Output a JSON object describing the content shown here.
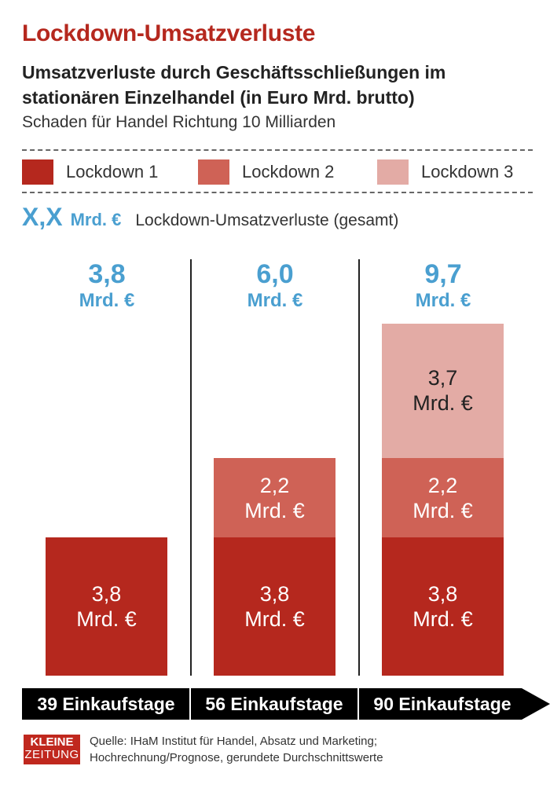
{
  "header": {
    "title": "Lockdown-Umsatzverluste",
    "subtitle": "Umsatzverluste durch Geschäftsschließungen im stationären Einzelhandel (in Euro Mrd. brutto)",
    "note": "Schaden für Handel Richtung 10 Milliarden"
  },
  "legend": {
    "items": [
      {
        "label": "Lockdown 1",
        "color": "#b5281e"
      },
      {
        "label": "Lockdown 2",
        "color": "#cf6256"
      },
      {
        "label": "Lockdown 3",
        "color": "#e3aba5"
      }
    ],
    "total_key": {
      "symbol": "X,X",
      "unit": "Mrd. €",
      "label": "Lockdown-Umsatzverluste (gesamt)"
    }
  },
  "footer": {
    "logo_line1": "KLEINE",
    "logo_line2": "ZEITUNG",
    "source_line1": "Quelle: IHaM Institut für Handel, Absatz und Marketing;",
    "source_line2": "Hochrechnung/Prognose, gerundete Durchschnittswerte"
  },
  "chart_data": {
    "type": "bar",
    "stacked": true,
    "categories": [
      "39 Einkaufstage",
      "56 Einkaufstage",
      "90 Einkaufstage"
    ],
    "unit": "Mrd. €",
    "totals": [
      "3,8",
      "6,0",
      "9,7"
    ],
    "series": [
      {
        "name": "Lockdown 1",
        "color": "#b5281e",
        "values": [
          3.8,
          3.8,
          3.8
        ],
        "labels": [
          "3,8",
          "3,8",
          "3,8"
        ]
      },
      {
        "name": "Lockdown 2",
        "color": "#cf6256",
        "values": [
          0,
          2.2,
          2.2
        ],
        "labels": [
          "",
          "2,2",
          "2,2"
        ]
      },
      {
        "name": "Lockdown 3",
        "color": "#e3aba5",
        "values": [
          0,
          0,
          3.7
        ],
        "labels": [
          "",
          "",
          "3,7"
        ]
      }
    ]
  }
}
